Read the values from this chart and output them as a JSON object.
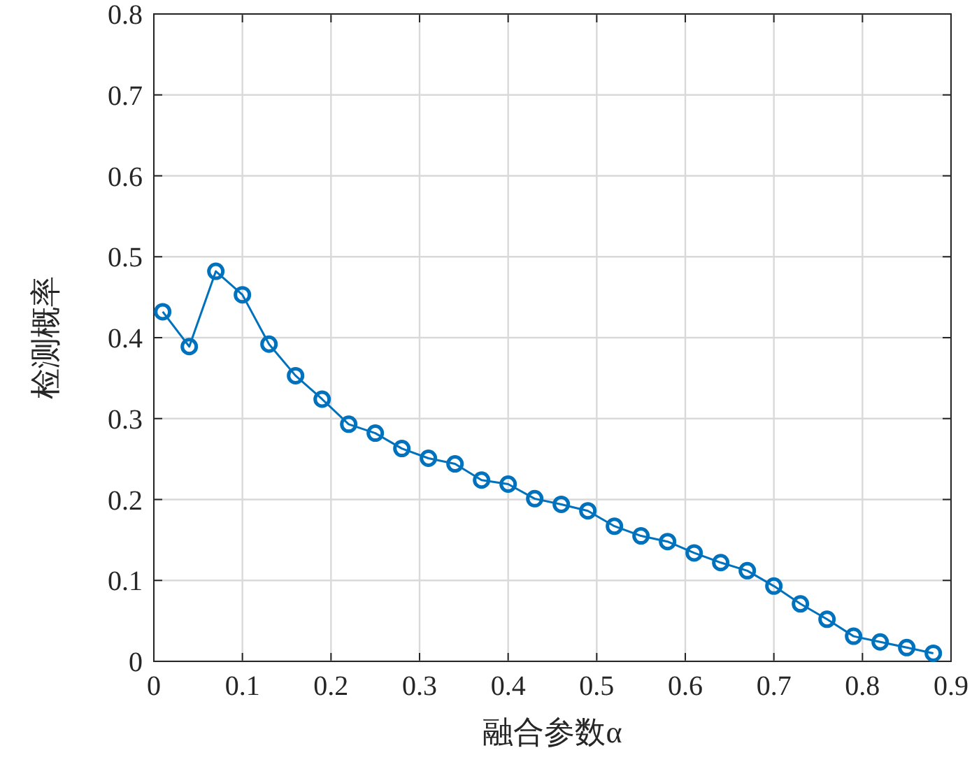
{
  "chart_data": {
    "type": "line",
    "xlabel": "融合参数α",
    "ylabel": "检测概率",
    "x": [
      0.01,
      0.04,
      0.07,
      0.1,
      0.13,
      0.16,
      0.19,
      0.22,
      0.25,
      0.28,
      0.31,
      0.34,
      0.37,
      0.4,
      0.43,
      0.46,
      0.49,
      0.52,
      0.55,
      0.58,
      0.61,
      0.64,
      0.67,
      0.7,
      0.73,
      0.76,
      0.79,
      0.82,
      0.85,
      0.88
    ],
    "series": [
      {
        "color": "#0072bd",
        "values": [
          0.432,
          0.389,
          0.482,
          0.453,
          0.392,
          0.353,
          0.324,
          0.293,
          0.282,
          0.263,
          0.251,
          0.244,
          0.224,
          0.219,
          0.201,
          0.194,
          0.186,
          0.167,
          0.155,
          0.148,
          0.134,
          0.122,
          0.112,
          0.093,
          0.071,
          0.052,
          0.031,
          0.024,
          0.017,
          0.01
        ]
      }
    ],
    "xlim": [
      0,
      0.9
    ],
    "ylim": [
      0,
      0.8
    ],
    "xticks": [
      0,
      0.1,
      0.2,
      0.3,
      0.4,
      0.5,
      0.6,
      0.7,
      0.8,
      0.9
    ],
    "yticks": [
      0,
      0.1,
      0.2,
      0.3,
      0.4,
      0.5,
      0.6,
      0.7,
      0.8
    ],
    "grid": true,
    "marker": "circle",
    "line_style": "solid"
  }
}
